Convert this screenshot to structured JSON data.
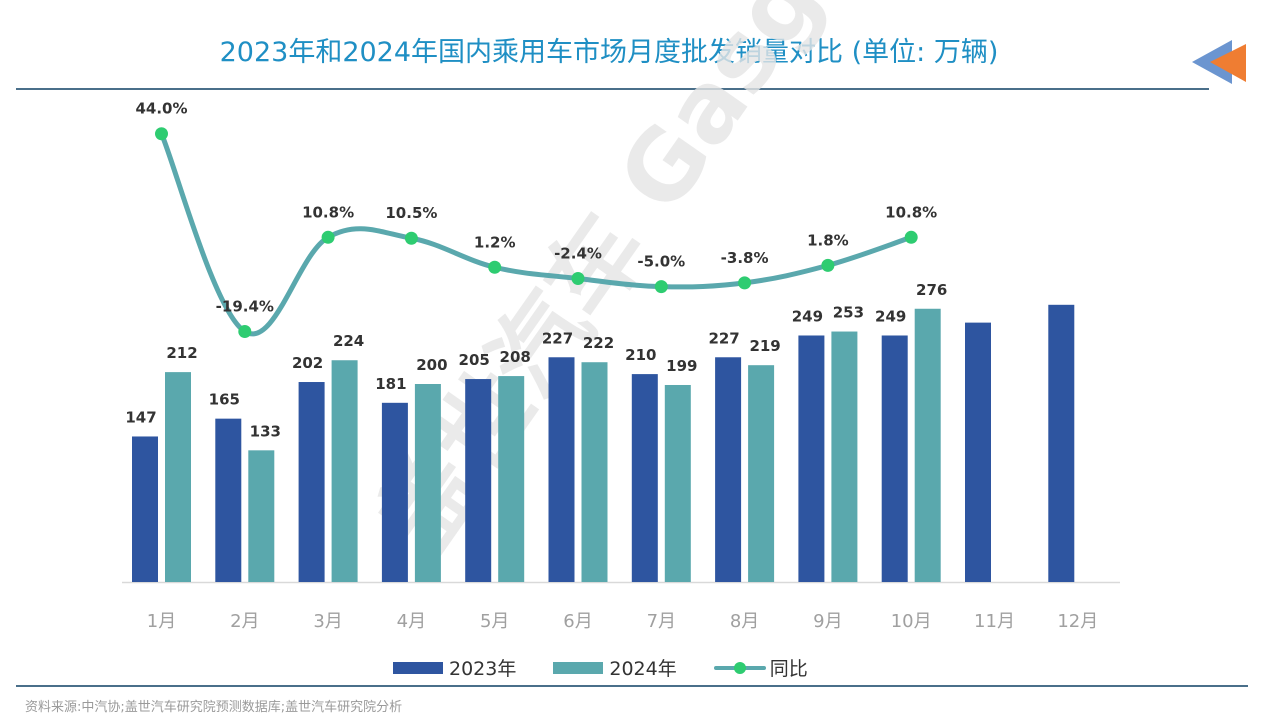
{
  "page": {
    "title": "2023年和2024年国内乘用车市场月度批发销量对比 (单位: 万辆)",
    "source": "资料来源:中汽协;盖世汽车研究院预测数据库;盖世汽车研究院分析",
    "watermark": "盖世汽车 Gasgoo",
    "colors": {
      "title": "#1f8fc4",
      "series_2023": "#2e55a0",
      "series_2024": "#5aa8ad",
      "yoy_line": "#5aa8ad",
      "yoy_marker": "#2ecc71",
      "arrow_blue": "#6b95d0",
      "arrow_orange": "#ef7d32"
    }
  },
  "legend": {
    "items": [
      {
        "label": "2023年"
      },
      {
        "label": "2024年"
      },
      {
        "label": "同比"
      }
    ]
  },
  "chart_data": {
    "type": "bar",
    "title": "2023年和2024年国内乘用车市场月度批发销量对比 (单位: 万辆)",
    "xlabel": "",
    "ylabel": "万辆",
    "ylim": [
      0,
      300
    ],
    "grid": false,
    "legend_position": "bottom",
    "categories": [
      "1月",
      "2月",
      "3月",
      "4月",
      "5月",
      "6月",
      "7月",
      "8月",
      "9月",
      "10月",
      "11月",
      "12月"
    ],
    "series": [
      {
        "name": "2023年",
        "type": "bar",
        "values": [
          147,
          165,
          202,
          181,
          205,
          227,
          210,
          227,
          249,
          249,
          262,
          280
        ],
        "labels": [
          "147",
          "165",
          "202",
          "181",
          "205",
          "227",
          "210",
          "227",
          "249",
          "249",
          null,
          null
        ]
      },
      {
        "name": "2024年",
        "type": "bar",
        "values": [
          212,
          133,
          224,
          200,
          208,
          222,
          199,
          219,
          253,
          276,
          null,
          null
        ],
        "labels": [
          "212",
          "133",
          "224",
          "200",
          "208",
          "222",
          "199",
          "219",
          "253",
          "276",
          null,
          null
        ]
      },
      {
        "name": "同比",
        "type": "line",
        "unit": "%",
        "values": [
          44.0,
          -19.4,
          10.8,
          10.5,
          1.2,
          -2.4,
          -5.0,
          -3.8,
          1.8,
          10.8,
          null,
          null
        ],
        "labels": [
          "44.0%",
          "-19.4%",
          "10.8%",
          "10.5%",
          "1.2%",
          "-2.4%",
          "-5.0%",
          "-3.8%",
          "1.8%",
          "10.8%",
          null,
          null
        ]
      }
    ]
  }
}
